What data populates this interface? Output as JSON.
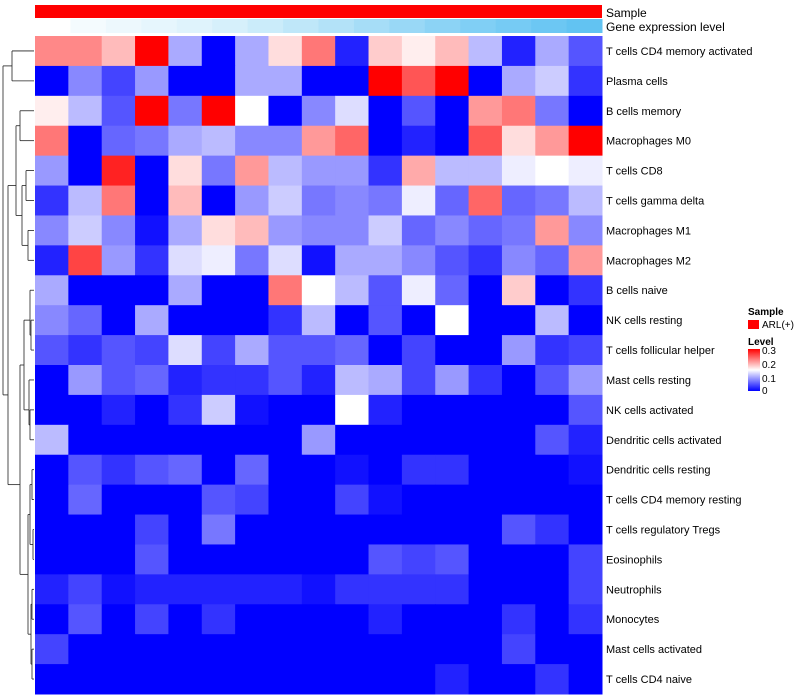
{
  "chart_data": {
    "type": "heatmap",
    "annotation_rows": [
      {
        "label": "Sample",
        "color": "#ff0000"
      },
      {
        "label": "Gene expression level",
        "colors": [
          "#ffffff",
          "#f4fbfe",
          "#edf8fd",
          "#e6f6fd",
          "#dff3fc",
          "#d6f0fb",
          "#cbecfa",
          "#bfe7f9",
          "#b3e2f8",
          "#a6ddf7",
          "#99d8f6",
          "#8cd3f5",
          "#80cff5",
          "#76cbf4",
          "#6cc7f3",
          "#62c3f2"
        ]
      }
    ],
    "rows": [
      {
        "label": "T cells CD4 memory activated",
        "values": [
          0.22,
          0.22,
          0.19,
          0.3,
          0.1,
          0.0,
          0.1,
          0.17,
          0.23,
          0.02,
          0.18,
          0.16,
          0.19,
          0.11,
          0.02,
          0.1,
          0.05
        ]
      },
      {
        "label": "Plasma cells",
        "values": [
          0.0,
          0.08,
          0.04,
          0.09,
          0.0,
          0.0,
          0.1,
          0.1,
          0.0,
          0.0,
          0.3,
          0.25,
          0.3,
          0.0,
          0.1,
          0.12,
          0.03
        ]
      },
      {
        "label": "B cells memory",
        "values": [
          0.16,
          0.11,
          0.05,
          0.3,
          0.07,
          0.3,
          0.15,
          0.0,
          0.08,
          0.13,
          0.0,
          0.05,
          0.0,
          0.21,
          0.23,
          0.07,
          0.0
        ]
      },
      {
        "label": "Macrophages M0",
        "values": [
          0.23,
          0.0,
          0.06,
          0.07,
          0.1,
          0.11,
          0.08,
          0.08,
          0.21,
          0.24,
          0.0,
          0.02,
          0.0,
          0.25,
          0.17,
          0.21,
          0.3
        ]
      },
      {
        "label": "T cells CD8",
        "values": [
          0.09,
          0.0,
          0.28,
          0.0,
          0.17,
          0.07,
          0.21,
          0.11,
          0.09,
          0.09,
          0.03,
          0.2,
          0.11,
          0.11,
          0.14,
          0.15,
          0.14
        ]
      },
      {
        "label": "T cells gamma delta",
        "values": [
          0.03,
          0.11,
          0.23,
          0.0,
          0.19,
          0.0,
          0.09,
          0.12,
          0.07,
          0.08,
          0.07,
          0.14,
          0.06,
          0.24,
          0.06,
          0.07,
          0.11
        ]
      },
      {
        "label": "Macrophages M1",
        "values": [
          0.08,
          0.12,
          0.08,
          0.01,
          0.1,
          0.17,
          0.19,
          0.09,
          0.08,
          0.08,
          0.12,
          0.06,
          0.08,
          0.06,
          0.07,
          0.21,
          0.08
        ]
      },
      {
        "label": "Macrophages M2",
        "values": [
          0.02,
          0.26,
          0.09,
          0.03,
          0.13,
          0.14,
          0.07,
          0.13,
          0.01,
          0.1,
          0.1,
          0.08,
          0.05,
          0.03,
          0.08,
          0.06,
          0.21
        ]
      },
      {
        "label": "B cells naive",
        "values": [
          0.1,
          0.0,
          0.0,
          0.0,
          0.1,
          0.0,
          0.0,
          0.23,
          0.15,
          0.11,
          0.05,
          0.14,
          0.06,
          0.0,
          0.18,
          0.0,
          0.03
        ]
      },
      {
        "label": "NK cells resting",
        "values": [
          0.08,
          0.06,
          0.0,
          0.1,
          0.0,
          0.0,
          0.0,
          0.03,
          0.11,
          0.0,
          0.05,
          0.0,
          0.15,
          0.0,
          0.0,
          0.11,
          0.0
        ]
      },
      {
        "label": "T cells follicular helper",
        "values": [
          0.05,
          0.03,
          0.05,
          0.04,
          0.13,
          0.04,
          0.1,
          0.05,
          0.05,
          0.06,
          0.0,
          0.04,
          0.0,
          0.0,
          0.09,
          0.03,
          0.04
        ]
      },
      {
        "label": "Mast cells resting",
        "values": [
          0.0,
          0.09,
          0.05,
          0.06,
          0.02,
          0.03,
          0.03,
          0.05,
          0.02,
          0.11,
          0.1,
          0.04,
          0.09,
          0.03,
          0.0,
          0.05,
          0.09
        ]
      },
      {
        "label": "NK cells activated",
        "values": [
          0.0,
          0.0,
          0.02,
          0.0,
          0.03,
          0.12,
          0.01,
          0.0,
          0.0,
          0.15,
          0.02,
          0.0,
          0.0,
          0.0,
          0.0,
          0.0,
          0.05
        ]
      },
      {
        "label": "Dendritic cells activated",
        "values": [
          0.11,
          0.0,
          0.0,
          0.0,
          0.0,
          0.0,
          0.0,
          0.0,
          0.09,
          0.0,
          0.0,
          0.0,
          0.0,
          0.0,
          0.0,
          0.05,
          0.02
        ]
      },
      {
        "label": "Dendritic cells resting",
        "values": [
          0.0,
          0.05,
          0.03,
          0.05,
          0.06,
          0.0,
          0.06,
          0.0,
          0.0,
          0.01,
          0.0,
          0.03,
          0.03,
          0.0,
          0.0,
          0.0,
          0.01
        ]
      },
      {
        "label": "T cells CD4 memory resting",
        "values": [
          0.0,
          0.06,
          0.0,
          0.0,
          0.0,
          0.05,
          0.04,
          0.0,
          0.0,
          0.04,
          0.01,
          0.0,
          0.0,
          0.0,
          0.0,
          0.0,
          0.0
        ]
      },
      {
        "label": "T cells regulatory  Tregs",
        "values": [
          0.0,
          0.0,
          0.0,
          0.04,
          0.0,
          0.07,
          0.0,
          0.0,
          0.0,
          0.0,
          0.0,
          0.0,
          0.0,
          0.0,
          0.05,
          0.03,
          0.0
        ]
      },
      {
        "label": "Eosinophils",
        "values": [
          0.0,
          0.0,
          0.0,
          0.05,
          0.0,
          0.0,
          0.0,
          0.0,
          0.0,
          0.0,
          0.05,
          0.04,
          0.05,
          0.0,
          0.0,
          0.0,
          0.04
        ]
      },
      {
        "label": "Neutrophils",
        "values": [
          0.02,
          0.04,
          0.01,
          0.02,
          0.02,
          0.02,
          0.02,
          0.02,
          0.01,
          0.03,
          0.03,
          0.03,
          0.03,
          0.0,
          0.0,
          0.0,
          0.04
        ]
      },
      {
        "label": "Monocytes",
        "values": [
          0.0,
          0.05,
          0.0,
          0.04,
          0.0,
          0.03,
          0.0,
          0.0,
          0.0,
          0.0,
          0.02,
          0.0,
          0.0,
          0.0,
          0.03,
          0.0,
          0.03
        ]
      },
      {
        "label": "Mast cells activated",
        "values": [
          0.04,
          0.0,
          0.0,
          0.0,
          0.0,
          0.0,
          0.0,
          0.0,
          0.0,
          0.0,
          0.0,
          0.0,
          0.0,
          0.0,
          0.04,
          0.0,
          0.0
        ]
      },
      {
        "label": "T cells CD4 naive",
        "values": [
          0.0,
          0.0,
          0.0,
          0.0,
          0.0,
          0.0,
          0.0,
          0.0,
          0.0,
          0.0,
          0.0,
          0.0,
          0.02,
          0.0,
          0.0,
          0.03,
          0.0
        ]
      }
    ],
    "color_scale": {
      "min": 0,
      "mid": 0.15,
      "max": 0.3,
      "low": "#0000ff",
      "midcolor": "#ffffff",
      "high": "#ff0000"
    },
    "legend": {
      "sample_title": "Sample",
      "sample_entry": "ARL(+)",
      "level_title": "Level",
      "level_ticks": [
        "0.3",
        "0.2",
        "0.1",
        "0"
      ]
    },
    "row_dendrogram": true
  }
}
